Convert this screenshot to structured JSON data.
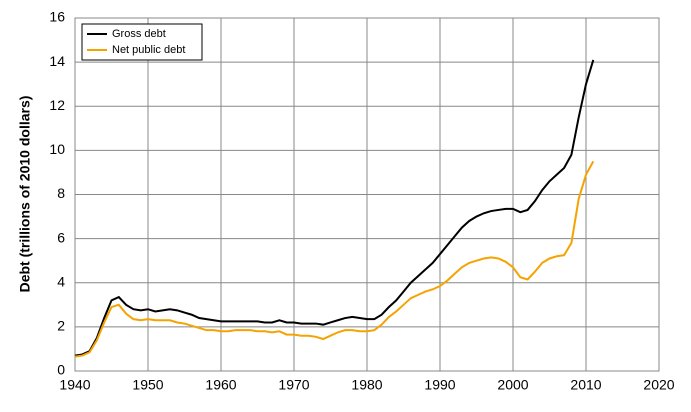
{
  "chart_data": {
    "type": "line",
    "y_label": "Debt (trillions of 2010 dollars)",
    "x": [
      1940,
      1941,
      1942,
      1943,
      1944,
      1945,
      1946,
      1947,
      1948,
      1949,
      1950,
      1951,
      1952,
      1953,
      1954,
      1955,
      1956,
      1957,
      1958,
      1959,
      1960,
      1961,
      1962,
      1963,
      1964,
      1965,
      1966,
      1967,
      1968,
      1969,
      1970,
      1971,
      1972,
      1973,
      1974,
      1975,
      1976,
      1977,
      1978,
      1979,
      1980,
      1981,
      1982,
      1983,
      1984,
      1985,
      1986,
      1987,
      1988,
      1989,
      1990,
      1991,
      1992,
      1993,
      1994,
      1995,
      1996,
      1997,
      1998,
      1999,
      2000,
      2001,
      2002,
      2003,
      2004,
      2005,
      2006,
      2007,
      2008,
      2009,
      2010,
      2011
    ],
    "series": [
      {
        "name": "Gross debt",
        "color": "#000000",
        "values": [
          0.7,
          0.75,
          0.9,
          1.5,
          2.4,
          3.2,
          3.35,
          3.0,
          2.8,
          2.75,
          2.8,
          2.7,
          2.75,
          2.8,
          2.75,
          2.65,
          2.55,
          2.4,
          2.35,
          2.3,
          2.25,
          2.25,
          2.25,
          2.25,
          2.25,
          2.25,
          2.2,
          2.2,
          2.3,
          2.2,
          2.2,
          2.15,
          2.15,
          2.15,
          2.1,
          2.2,
          2.3,
          2.4,
          2.45,
          2.4,
          2.35,
          2.35,
          2.55,
          2.9,
          3.2,
          3.6,
          4.0,
          4.3,
          4.6,
          4.9,
          5.3,
          5.7,
          6.1,
          6.5,
          6.8,
          7.0,
          7.15,
          7.25,
          7.3,
          7.35,
          7.35,
          7.2,
          7.3,
          7.7,
          8.2,
          8.6,
          8.9,
          9.2,
          9.8,
          11.5,
          13.0,
          14.1
        ]
      },
      {
        "name": "Net public debt",
        "color": "#f5a300",
        "values": [
          0.65,
          0.7,
          0.85,
          1.4,
          2.2,
          2.9,
          3.0,
          2.6,
          2.35,
          2.3,
          2.35,
          2.3,
          2.3,
          2.3,
          2.2,
          2.15,
          2.05,
          1.95,
          1.85,
          1.85,
          1.8,
          1.8,
          1.85,
          1.85,
          1.85,
          1.8,
          1.8,
          1.75,
          1.8,
          1.65,
          1.65,
          1.6,
          1.6,
          1.55,
          1.45,
          1.6,
          1.75,
          1.85,
          1.85,
          1.8,
          1.8,
          1.85,
          2.1,
          2.45,
          2.7,
          3.0,
          3.3,
          3.45,
          3.6,
          3.7,
          3.85,
          4.1,
          4.4,
          4.7,
          4.9,
          5.0,
          5.1,
          5.15,
          5.1,
          4.95,
          4.7,
          4.25,
          4.15,
          4.5,
          4.9,
          5.1,
          5.2,
          5.25,
          5.8,
          7.8,
          8.9,
          9.5
        ]
      }
    ],
    "xlim": [
      1940,
      2020
    ],
    "xticks": [
      1940,
      1950,
      1960,
      1970,
      1980,
      1990,
      2000,
      2010,
      2020
    ],
    "ylim": [
      0,
      16
    ],
    "yticks": [
      0,
      2,
      4,
      6,
      8,
      10,
      12,
      14,
      16
    ],
    "grid": true,
    "legend": "top-left"
  }
}
